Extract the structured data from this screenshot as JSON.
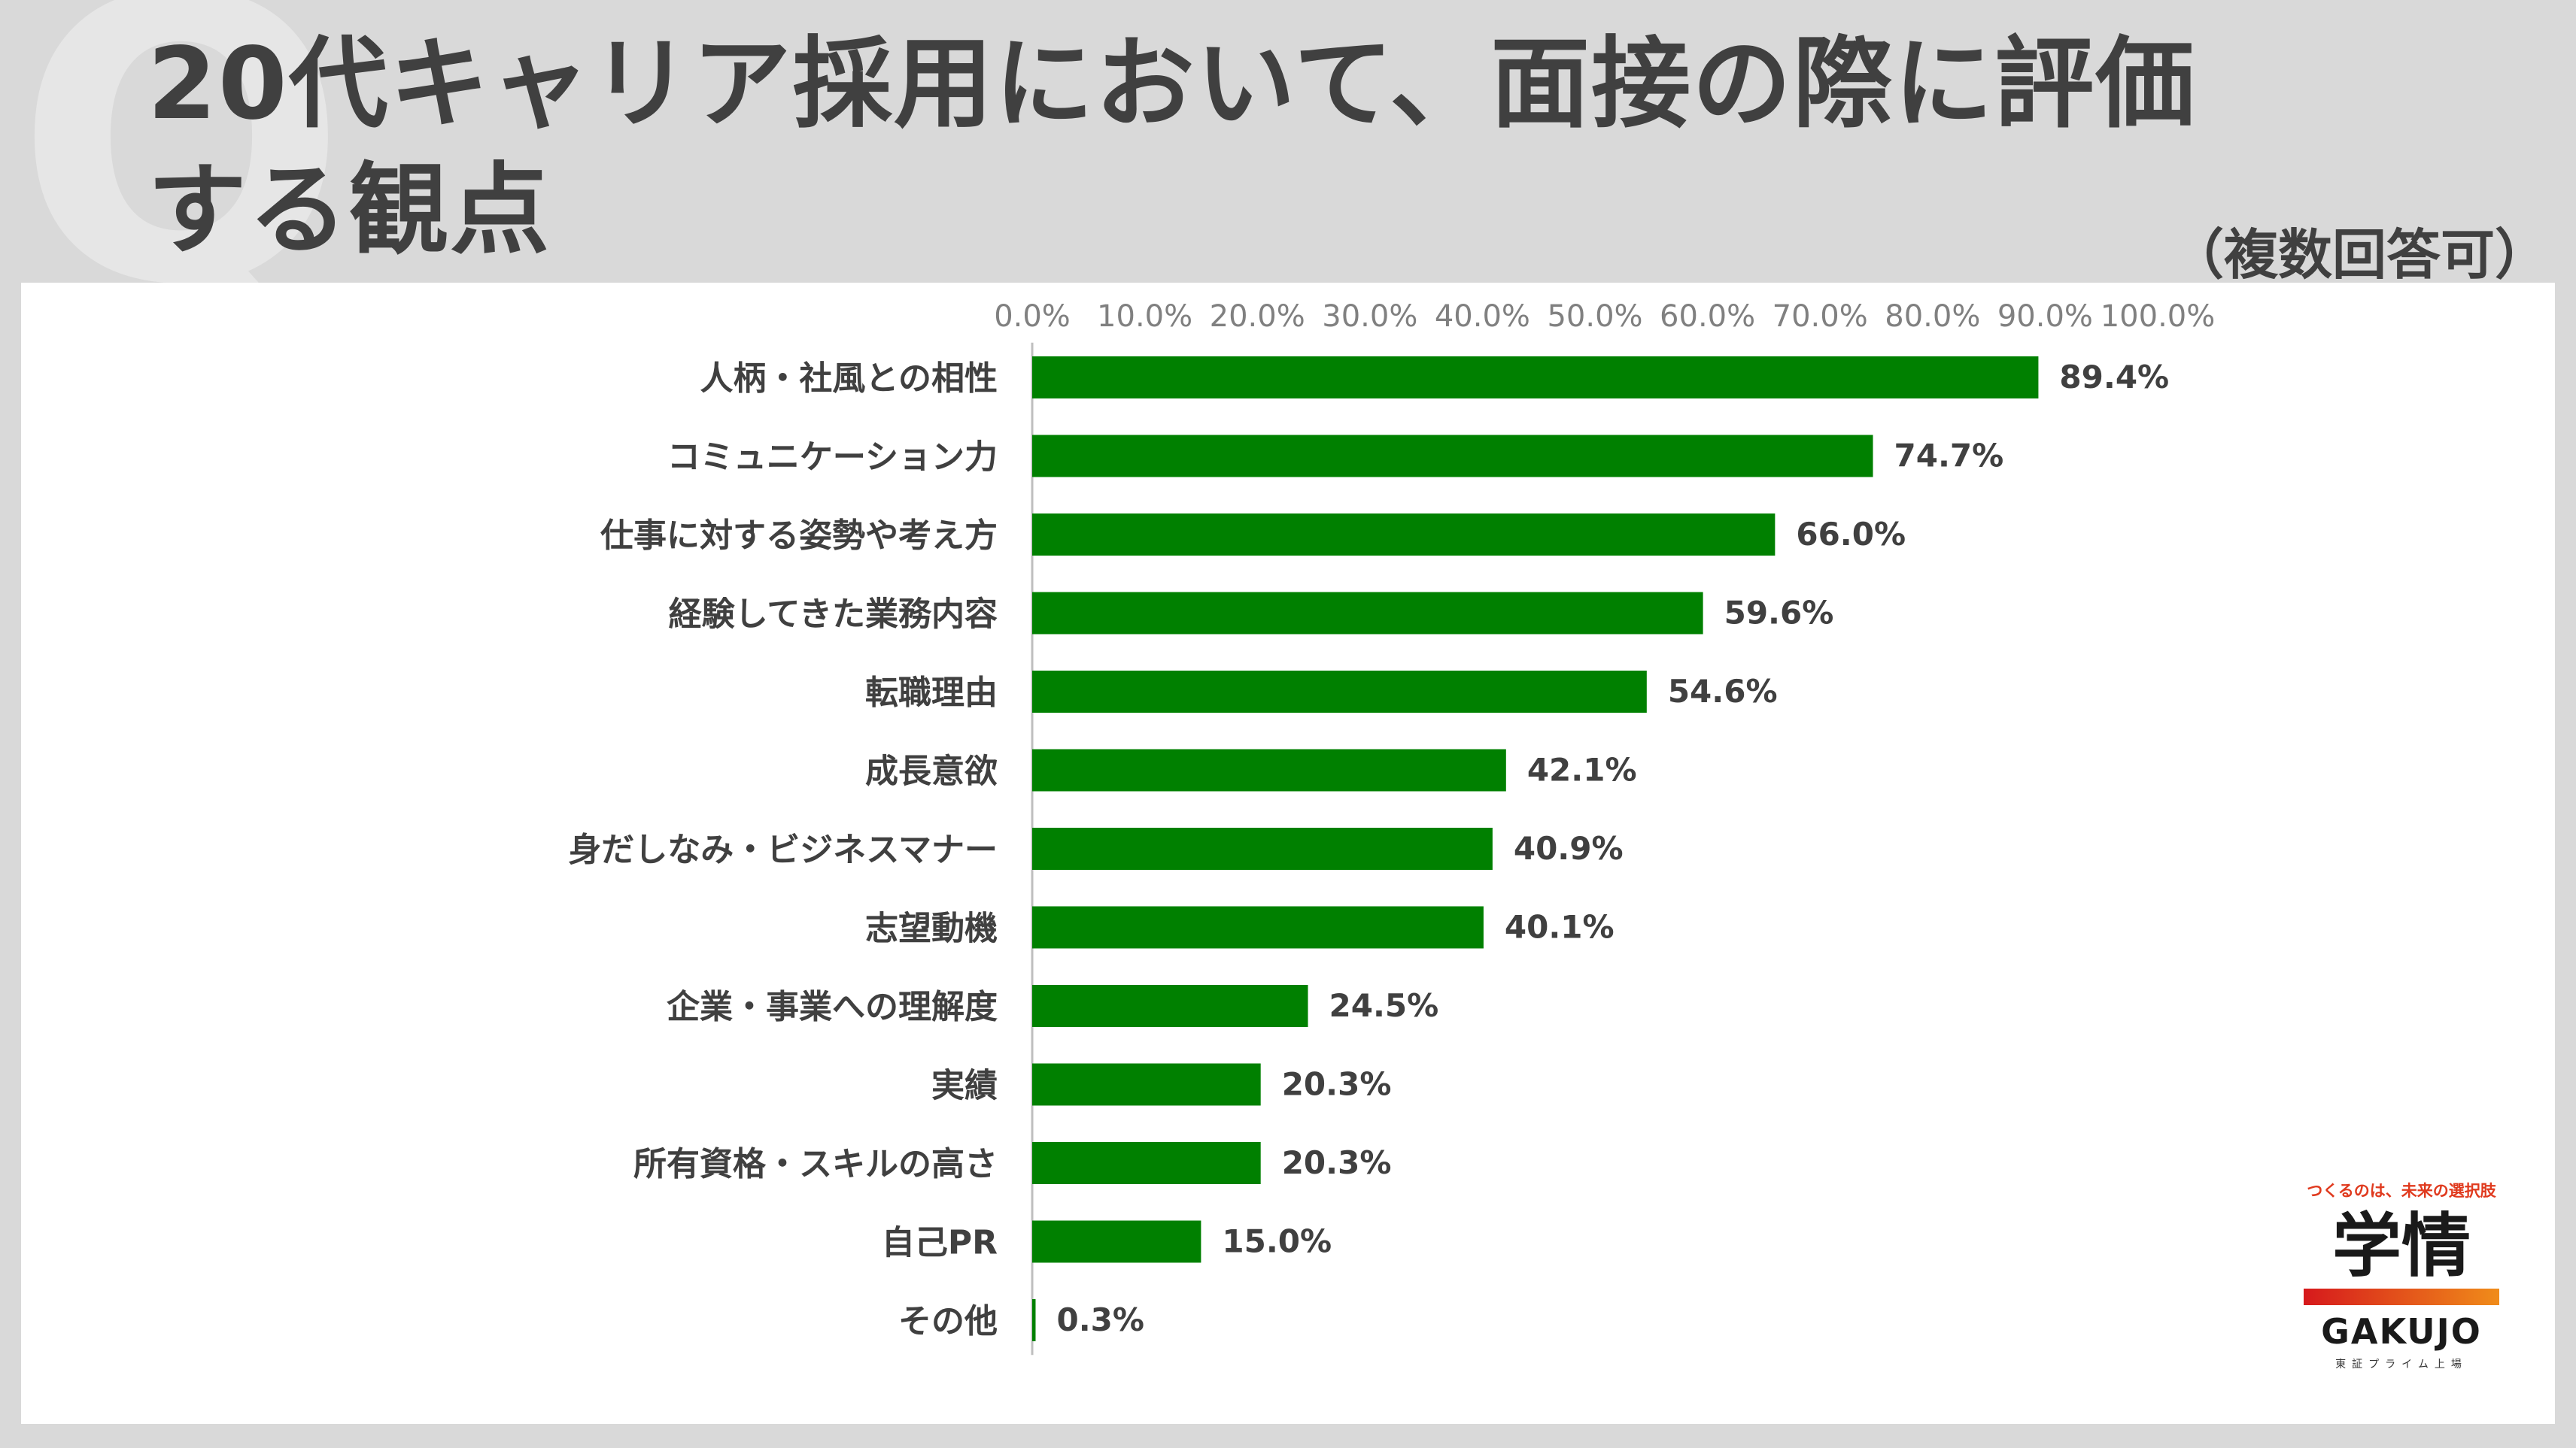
{
  "slide": {
    "title_line1": "20代キャリア採用において、面接の際に評価",
    "title_line2": "する観点",
    "subnote": "（複数回答可）",
    "q_mark": "Q"
  },
  "logo": {
    "tagline": "つくるのは、未来の選択肢",
    "kanji": "学情",
    "word": "GAKUJO",
    "listed": "東証プライム上場",
    "gradient_colors": [
      "#d6191c",
      "#f08c1a"
    ]
  },
  "chart_data": {
    "type": "bar",
    "orientation": "horizontal",
    "categories": [
      "人柄・社風との相性",
      "コミュニケーション力",
      "仕事に対する姿勢や考え方",
      "経験してきた業務内容",
      "転職理由",
      "成長意欲",
      "身だしなみ・ビジネスマナー",
      "志望動機",
      "企業・事業への理解度",
      "実績",
      "所有資格・スキルの高さ",
      "自己PR",
      "その他"
    ],
    "values": [
      89.4,
      74.7,
      66.0,
      59.6,
      54.6,
      42.1,
      40.9,
      40.1,
      24.5,
      20.3,
      20.3,
      15.0,
      0.3
    ],
    "data_labels": [
      "89.4%",
      "74.7%",
      "66.0%",
      "59.6%",
      "54.6%",
      "42.1%",
      "40.9%",
      "40.1%",
      "24.5%",
      "20.3%",
      "20.3%",
      "15.0%",
      "0.3%"
    ],
    "xlim": [
      0,
      100
    ],
    "x_ticks": [
      "0.0%",
      "10.0%",
      "20.0%",
      "30.0%",
      "40.0%",
      "50.0%",
      "60.0%",
      "70.0%",
      "80.0%",
      "90.0%",
      "100.0%"
    ],
    "axis_position": "top",
    "grid": false,
    "bar_color": "#008000",
    "axis_line_color": "#bfbfbf",
    "tick_label_color": "#808080",
    "category_label_color": "#404040",
    "value_label_color": "#404040"
  }
}
